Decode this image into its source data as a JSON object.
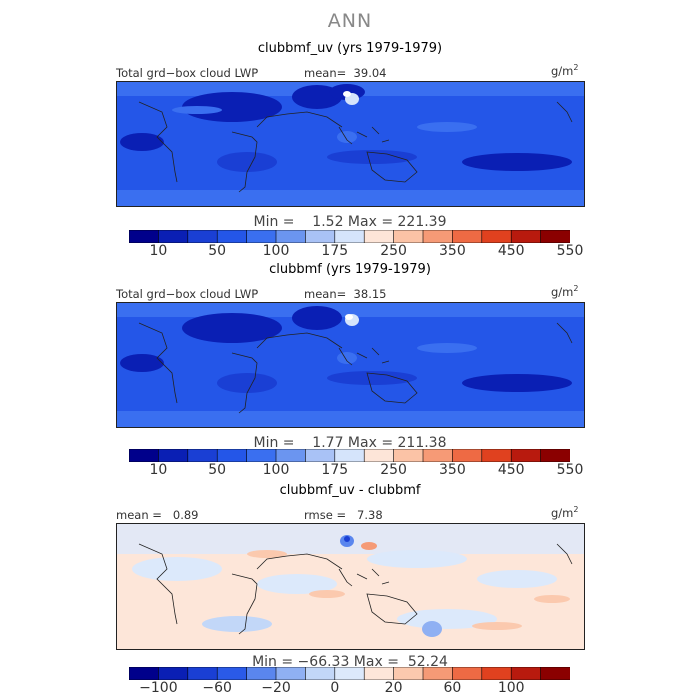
{
  "title": "ANN",
  "panels": [
    {
      "title": "clubbmf_uv (yrs 1979-1979)",
      "left_label": "Total grd−box cloud LWP",
      "mean_text": "mean=  39.04",
      "rmse_text": "",
      "units": "g/m",
      "units_exp": "2",
      "minmax": "Min =    1.52 Max = 221.39",
      "colorbar_labels": [
        "10",
        "50",
        "100",
        "175",
        "250",
        "350",
        "450",
        "550"
      ],
      "palette": "sequential"
    },
    {
      "title": "clubbmf (yrs 1979-1979)",
      "left_label": "Total grd−box cloud LWP",
      "mean_text": "mean=  38.15",
      "rmse_text": "",
      "units": "g/m",
      "units_exp": "2",
      "minmax": "Min =    1.77 Max = 211.38",
      "colorbar_labels": [
        "10",
        "50",
        "100",
        "175",
        "250",
        "350",
        "450",
        "550"
      ],
      "palette": "sequential"
    },
    {
      "title": "clubbmf_uv - clubbmf",
      "left_label": "",
      "mean_text": "mean =   0.89",
      "rmse_text": "rmse =   7.38",
      "units": "g/m",
      "units_exp": "2",
      "minmax": "Min = −66.33 Max =  52.24",
      "colorbar_labels": [
        "−100",
        "−60",
        "−20",
        "0",
        "20",
        "60",
        "100"
      ],
      "palette": "diverging"
    }
  ],
  "colors": {
    "sequential": [
      "#00008b",
      "#0a1fb4",
      "#1a3fd4",
      "#2456e8",
      "#3a6ff0",
      "#6b95f0",
      "#a9c2f6",
      "#d5e4fb",
      "#fde5d8",
      "#fbc3a6",
      "#f69a76",
      "#ee6a44",
      "#e0411f",
      "#b81a0e",
      "#8b0000"
    ],
    "diverging": [
      "#00008b",
      "#0a1fb4",
      "#1a3fd4",
      "#2a5ae8",
      "#5a86ee",
      "#8fb0f3",
      "#c2d7f8",
      "#dce9fb",
      "#fde6d9",
      "#fbc9ae",
      "#f59a76",
      "#ee6a44",
      "#e0411f",
      "#b81a0e",
      "#8b0000"
    ]
  },
  "chart_data": [
    {
      "type": "heatmap",
      "title": "clubbmf_uv (yrs 1979-1979)",
      "variable": "Total grd-box cloud LWP",
      "units": "g/m2",
      "mean": 39.04,
      "min": 1.52,
      "max": 221.39,
      "colorbar_ticks": [
        10,
        50,
        100,
        175,
        250,
        350,
        450,
        550
      ]
    },
    {
      "type": "heatmap",
      "title": "clubbmf (yrs 1979-1979)",
      "variable": "Total grd-box cloud LWP",
      "units": "g/m2",
      "mean": 38.15,
      "min": 1.77,
      "max": 211.38,
      "colorbar_ticks": [
        10,
        50,
        100,
        175,
        250,
        350,
        450,
        550
      ]
    },
    {
      "type": "heatmap",
      "title": "clubbmf_uv - clubbmf",
      "units": "g/m2",
      "mean": 0.89,
      "rmse": 7.38,
      "min": -66.33,
      "max": 52.24,
      "colorbar_ticks": [
        -100,
        -60,
        -20,
        0,
        20,
        60,
        100
      ]
    }
  ]
}
